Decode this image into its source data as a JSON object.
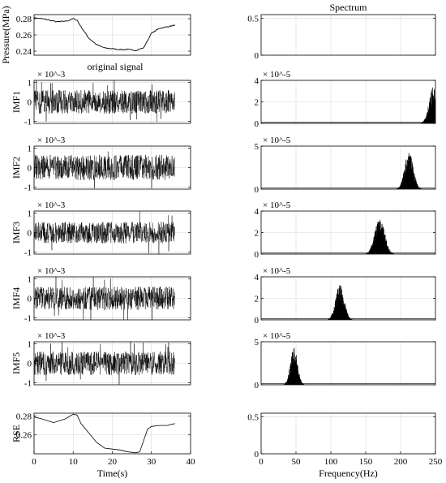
{
  "chart_data": [
    {
      "type": "line",
      "id": "pressure",
      "ylabel": "Pressure(MPa)",
      "xlim": [
        0,
        40
      ],
      "ylim": [
        0.235,
        0.285
      ],
      "yticks": [
        "0.28",
        "0.26",
        "0.24"
      ],
      "ytick_values": [
        0.28,
        0.26,
        0.24
      ],
      "grid": true,
      "annotation": "original signal",
      "series": [
        {
          "x": [
            0,
            2,
            4,
            6,
            8,
            9,
            10,
            11,
            12,
            14,
            16,
            18,
            20,
            22,
            24,
            26,
            28,
            30,
            32,
            34,
            36
          ],
          "values": [
            0.281,
            0.28,
            0.278,
            0.276,
            0.277,
            0.278,
            0.28,
            0.278,
            0.27,
            0.256,
            0.248,
            0.244,
            0.243,
            0.242,
            0.242,
            0.241,
            0.244,
            0.262,
            0.268,
            0.27,
            0.272
          ]
        }
      ]
    },
    {
      "type": "line",
      "id": "imf1",
      "ylabel": "IMF1",
      "exponent": "× 10^-3",
      "xlim": [
        0,
        40
      ],
      "ylim": [
        -1.1,
        1.1
      ],
      "yticks": [
        "1",
        "0",
        "-1"
      ],
      "ytick_values": [
        1,
        0,
        -1
      ],
      "grid": true,
      "series": [
        {
          "x": [
            0,
            36
          ],
          "amplitude": [
            0.6,
            0.6
          ]
        }
      ]
    },
    {
      "type": "line",
      "id": "imf2",
      "ylabel": "IMF2",
      "exponent": "× 10^-3",
      "xlim": [
        0,
        40
      ],
      "ylim": [
        -1.1,
        1.1
      ],
      "yticks": [
        "1",
        "0",
        "-1"
      ],
      "ytick_values": [
        1,
        0,
        -1
      ],
      "grid": true,
      "series": [
        {
          "x": [
            0,
            36
          ],
          "amplitude": [
            0.65,
            0.65
          ]
        }
      ]
    },
    {
      "type": "line",
      "id": "imf3",
      "ylabel": "IMF3",
      "exponent": "× 10^-3",
      "xlim": [
        0,
        40
      ],
      "ylim": [
        -1.1,
        1.1
      ],
      "yticks": [
        "1",
        "0",
        "-1"
      ],
      "ytick_values": [
        1,
        0,
        -1
      ],
      "grid": true,
      "series": [
        {
          "x": [
            0,
            36
          ],
          "amplitude": [
            0.55,
            0.55
          ]
        }
      ]
    },
    {
      "type": "line",
      "id": "imf4",
      "ylabel": "IMF4",
      "exponent": "× 10^-3",
      "xlim": [
        0,
        40
      ],
      "ylim": [
        -1.1,
        1.1
      ],
      "yticks": [
        "1",
        "0",
        "-1"
      ],
      "ytick_values": [
        1,
        0,
        -1
      ],
      "grid": true,
      "series": [
        {
          "x": [
            0,
            36
          ],
          "amplitude": [
            0.6,
            0.6
          ]
        }
      ]
    },
    {
      "type": "line",
      "id": "imf5",
      "ylabel": "IMF5",
      "exponent": "× 10^-3",
      "xlim": [
        0,
        40
      ],
      "ylim": [
        -1.1,
        1.1
      ],
      "yticks": [
        "1",
        "0",
        "-1"
      ],
      "ytick_values": [
        1,
        0,
        -1
      ],
      "grid": true,
      "series": [
        {
          "x": [
            0,
            36
          ],
          "amplitude": [
            0.6,
            0.6
          ]
        }
      ]
    },
    {
      "type": "line",
      "id": "rse",
      "ylabel": "RSE",
      "xlabel": "Time(s)",
      "xlim": [
        0,
        40
      ],
      "ylim": [
        0.24,
        0.283
      ],
      "xticks": [
        "0",
        "10",
        "20",
        "30",
        "40"
      ],
      "xtick_values": [
        0,
        10,
        20,
        30,
        40
      ],
      "yticks": [
        "0.28",
        "0.26"
      ],
      "ytick_values": [
        0.28,
        0.26
      ],
      "grid": true,
      "series": [
        {
          "x": [
            0,
            2,
            5,
            8,
            10,
            11,
            12,
            14,
            16,
            18,
            20,
            22,
            24,
            26,
            27,
            28,
            29,
            30,
            32,
            34,
            36
          ],
          "values": [
            0.279,
            0.277,
            0.273,
            0.277,
            0.282,
            0.281,
            0.272,
            0.262,
            0.252,
            0.246,
            0.245,
            0.244,
            0.242,
            0.241,
            0.242,
            0.254,
            0.266,
            0.269,
            0.27,
            0.27,
            0.272
          ]
        }
      ]
    },
    {
      "type": "line",
      "id": "spec0",
      "title": "Spectrum",
      "xlim": [
        0,
        250
      ],
      "ylim": [
        0,
        0.55
      ],
      "yticks": [
        "0.5",
        "0"
      ],
      "ytick_values": [
        0.5,
        0
      ],
      "grid": true,
      "series": []
    },
    {
      "type": "area",
      "id": "spec1",
      "exponent": "× 10^-5",
      "xlim": [
        0,
        250
      ],
      "ylim": [
        0,
        4
      ],
      "yticks": [
        "4",
        "2",
        "0"
      ],
      "ytick_values": [
        4,
        2,
        0
      ],
      "grid": true,
      "series": [
        {
          "center": 247,
          "width": 6,
          "peak": 3.5
        }
      ]
    },
    {
      "type": "area",
      "id": "spec2",
      "exponent": "× 10^-5",
      "xlim": [
        0,
        250
      ],
      "ylim": [
        0,
        5
      ],
      "yticks": [
        "5",
        "0"
      ],
      "ytick_values": [
        5,
        0
      ],
      "grid": true,
      "series": [
        {
          "center": 212,
          "width": 6,
          "peak": 4.5
        }
      ]
    },
    {
      "type": "area",
      "id": "spec3",
      "exponent": "× 10^-5",
      "xlim": [
        0,
        250
      ],
      "ylim": [
        0,
        4
      ],
      "yticks": [
        "4",
        "2",
        "0"
      ],
      "ytick_values": [
        4,
        2,
        0
      ],
      "grid": true,
      "series": [
        {
          "center": 170,
          "width": 7,
          "peak": 3.4
        }
      ]
    },
    {
      "type": "area",
      "id": "spec4",
      "exponent": "× 10^-5",
      "xlim": [
        0,
        250
      ],
      "ylim": [
        0,
        4
      ],
      "yticks": [
        "4",
        "2",
        "0"
      ],
      "ytick_values": [
        4,
        2,
        0
      ],
      "grid": true,
      "series": [
        {
          "center": 113,
          "width": 6,
          "peak": 3.4
        }
      ]
    },
    {
      "type": "area",
      "id": "spec5",
      "exponent": "× 10^-5",
      "xlim": [
        0,
        250
      ],
      "ylim": [
        0,
        5
      ],
      "yticks": [
        "5",
        "0"
      ],
      "ytick_values": [
        5,
        0
      ],
      "grid": true,
      "series": [
        {
          "center": 47,
          "width": 5,
          "peak": 4.4
        }
      ]
    },
    {
      "type": "line",
      "id": "spec6",
      "xlabel": "Frequency(Hz)",
      "xlim": [
        0,
        250
      ],
      "ylim": [
        0,
        0.55
      ],
      "xticks": [
        "0",
        "50",
        "100",
        "150",
        "200",
        "250"
      ],
      "xtick_values": [
        0,
        50,
        100,
        150,
        200,
        250
      ],
      "yticks": [
        "0.5",
        "0"
      ],
      "ytick_values": [
        0.5,
        0
      ],
      "grid": true,
      "series": []
    }
  ]
}
